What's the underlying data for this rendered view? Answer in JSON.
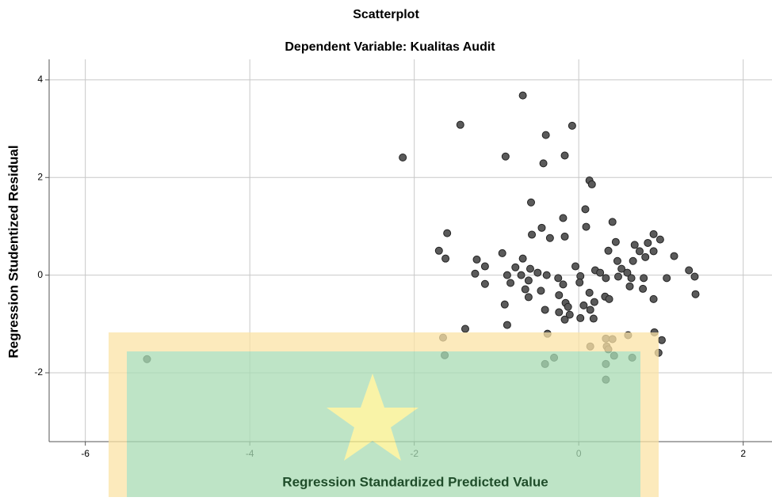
{
  "chart_data": {
    "type": "scatter",
    "title": "Scatterplot",
    "subtitle": "Dependent Variable: Kualitas Audit",
    "x_label": "Regression Standardized Predicted Value",
    "y_label": "Regression Studentized Residual",
    "color": "#5a5a5a",
    "grid": true,
    "xlim": [
      -6.44,
      2.35
    ],
    "ylim": [
      -3.41,
      4.42
    ],
    "xticks": [
      -6,
      -4,
      -2,
      0,
      2
    ],
    "yticks": [
      -2,
      0,
      2,
      4
    ],
    "x": [
      -0.68,
      -1.44,
      -0.4,
      -0.08,
      -2.14,
      -0.89,
      -0.43,
      -0.17,
      0.13,
      0.16,
      -0.58,
      0.08,
      -0.19,
      0.41,
      0.09,
      -0.45,
      -1.6,
      -0.57,
      -0.17,
      -0.35,
      0.91,
      0.99,
      0.45,
      0.68,
      0.84,
      -1.7,
      0.36,
      0.74,
      0.91,
      -1.62,
      -1.24,
      -0.93,
      -0.68,
      0.47,
      0.66,
      0.81,
      1.16,
      1.34,
      1.41,
      -1.14,
      -0.77,
      -0.59,
      -0.5,
      -0.04,
      0.2,
      0.26,
      0.52,
      0.59,
      -1.26,
      -0.87,
      -0.7,
      -0.39,
      -0.25,
      0.02,
      0.33,
      0.48,
      0.64,
      0.79,
      1.07,
      -1.14,
      -0.83,
      -0.61,
      -0.46,
      -0.19,
      0.01,
      0.62,
      0.78,
      -0.65,
      -0.61,
      -0.24,
      0.13,
      0.32,
      0.37,
      1.42,
      0.91,
      -0.9,
      -0.16,
      0.19,
      -0.13,
      0.06,
      0.14,
      -0.41,
      -0.24,
      -0.11,
      -0.17,
      0.02,
      0.18,
      -0.87,
      -1.38,
      0.92,
      1.01,
      -1.65,
      -0.38,
      0.33,
      0.41,
      0.6,
      0.14,
      0.34,
      0.36,
      0.97,
      -1.63,
      0.43,
      -0.3,
      0.65,
      -5.25,
      -0.41,
      0.33,
      0.33
    ],
    "values": [
      3.68,
      3.08,
      2.87,
      3.06,
      2.41,
      2.43,
      2.29,
      2.45,
      1.94,
      1.86,
      1.49,
      1.35,
      1.17,
      1.09,
      0.99,
      0.97,
      0.86,
      0.83,
      0.79,
      0.76,
      0.84,
      0.73,
      0.68,
      0.62,
      0.66,
      0.5,
      0.5,
      0.49,
      0.49,
      0.34,
      0.32,
      0.45,
      0.34,
      0.29,
      0.29,
      0.37,
      0.39,
      0.1,
      -0.03,
      0.18,
      0.16,
      0.13,
      0.05,
      0.18,
      0.1,
      0.05,
      0.13,
      0.05,
      0.03,
      0.0,
      0.0,
      0.0,
      -0.06,
      -0.02,
      -0.06,
      -0.03,
      -0.06,
      -0.06,
      -0.06,
      -0.18,
      -0.16,
      -0.11,
      -0.32,
      -0.19,
      -0.15,
      -0.23,
      -0.28,
      -0.29,
      -0.45,
      -0.41,
      -0.36,
      -0.44,
      -0.49,
      -0.39,
      -0.49,
      -0.6,
      -0.57,
      -0.55,
      -0.65,
      -0.62,
      -0.71,
      -0.71,
      -0.76,
      -0.81,
      -0.91,
      -0.88,
      -0.89,
      -1.02,
      -1.1,
      -1.17,
      -1.33,
      -1.28,
      -1.2,
      -1.3,
      -1.31,
      -1.23,
      -1.46,
      -1.46,
      -1.52,
      -1.59,
      -1.64,
      -1.65,
      -1.69,
      -1.69,
      -1.72,
      -1.82,
      -1.82,
      -2.14
    ]
  }
}
